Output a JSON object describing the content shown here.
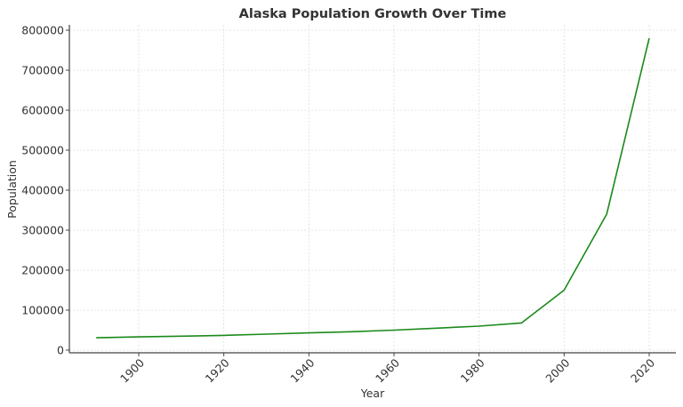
{
  "chart_data": {
    "type": "line",
    "title": "Alaska Population Growth Over Time",
    "xlabel": "Year",
    "ylabel": "Population",
    "x": [
      1890,
      1900,
      1910,
      1920,
      1930,
      1940,
      1950,
      1960,
      1970,
      1980,
      1990,
      2000,
      2010,
      2020
    ],
    "series": [
      {
        "name": "Population",
        "color": "#1a8a1a",
        "values": [
          31000,
          33000,
          35000,
          37000,
          40000,
          43000,
          46000,
          50000,
          55000,
          60000,
          68000,
          150000,
          340000,
          780000
        ]
      }
    ],
    "xticks": [
      1900,
      1920,
      1940,
      1960,
      1980,
      2000,
      2020
    ],
    "yticks": [
      0,
      100000,
      200000,
      300000,
      400000,
      500000,
      600000,
      700000,
      800000
    ],
    "xlim": [
      1883.5,
      2026.5
    ],
    "ylim": [
      -7500,
      818000
    ],
    "grid": true,
    "legend": null
  }
}
